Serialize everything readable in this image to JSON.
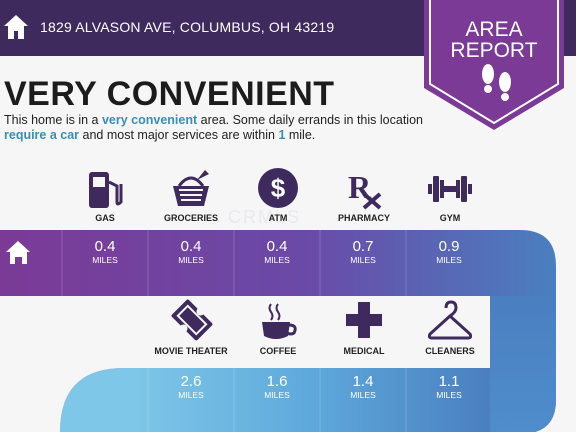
{
  "header": {
    "address": "1829 ALVASON AVE, COLUMBUS, OH 43219",
    "badge_line1": "AREA",
    "badge_line2": "REPORT"
  },
  "summary": {
    "title": "VERY CONVENIENT",
    "desc_pre": "This home is in a ",
    "desc_hl1": "very convenient",
    "desc_mid1": " area. Some daily errands in this location ",
    "desc_hl2": "require a car",
    "desc_mid2": " and most major services are within ",
    "desc_hl3": "1",
    "desc_post": " mile."
  },
  "watermark": "CRMLS",
  "row1": [
    {
      "label": "GAS",
      "value": "0.4",
      "unit": "MILES",
      "icon": "gas-pump-icon"
    },
    {
      "label": "GROCERIES",
      "value": "0.4",
      "unit": "MILES",
      "icon": "grocery-basket-icon"
    },
    {
      "label": "ATM",
      "value": "0.4",
      "unit": "MILES",
      "icon": "dollar-icon"
    },
    {
      "label": "PHARMACY",
      "value": "0.7",
      "unit": "MILES",
      "icon": "rx-icon"
    },
    {
      "label": "GYM",
      "value": "0.9",
      "unit": "MILES",
      "icon": "dumbbell-icon"
    }
  ],
  "row2": [
    {
      "label": "MOVIE THEATER",
      "value": "2.6",
      "unit": "MILES",
      "icon": "ticket-icon"
    },
    {
      "label": "COFFEE",
      "value": "1.6",
      "unit": "MILES",
      "icon": "coffee-cup-icon"
    },
    {
      "label": "MEDICAL",
      "value": "1.4",
      "unit": "MILES",
      "icon": "medical-cross-icon"
    },
    {
      "label": "CLEANERS",
      "value": "1.1",
      "unit": "MILES",
      "icon": "hanger-icon"
    }
  ],
  "colors": {
    "header_bg": "#3f2a5e",
    "badge": "#7b3a96",
    "icon": "#3f2a5e",
    "highlight_text": "#3a8fb8"
  }
}
